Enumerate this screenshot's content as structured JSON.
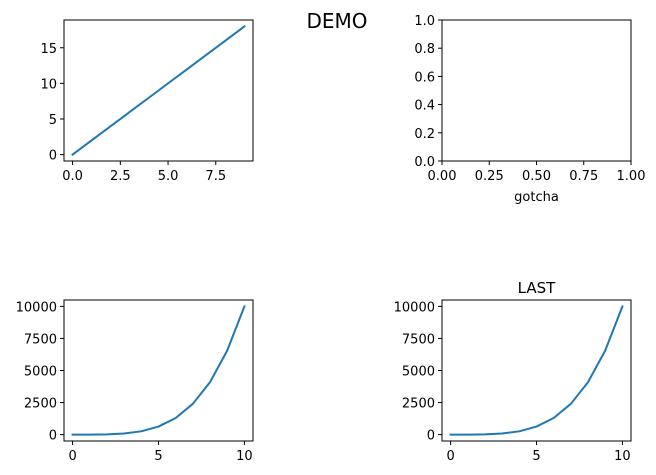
{
  "figure": {
    "suptitle": "DEMO"
  },
  "chart_data": [
    {
      "type": "line",
      "title": "",
      "xlabel": "",
      "ylabel": "",
      "xlim": [
        -0.45,
        9.45
      ],
      "ylim": [
        -0.9,
        18.9
      ],
      "x_ticks": [
        0,
        2.5,
        5,
        7.5
      ],
      "x_tick_labels": [
        "0.0",
        "2.5",
        "5.0",
        "7.5"
      ],
      "y_ticks": [
        0,
        5,
        10,
        15
      ],
      "y_tick_labels": [
        "0",
        "5",
        "10",
        "15"
      ],
      "grid": false,
      "series": [
        {
          "x": [
            0,
            1,
            2,
            3,
            4,
            5,
            6,
            7,
            8,
            9
          ],
          "y": [
            0,
            2,
            4,
            6,
            8,
            10,
            12,
            14,
            16,
            18
          ],
          "color": "#1f77b4"
        }
      ]
    },
    {
      "type": "line",
      "title": "",
      "xlabel": "gotcha",
      "ylabel": "",
      "xlim": [
        0,
        1
      ],
      "ylim": [
        0,
        1
      ],
      "x_ticks": [
        0,
        0.25,
        0.5,
        0.75,
        1
      ],
      "x_tick_labels": [
        "0.00",
        "0.25",
        "0.50",
        "0.75",
        "1.00"
      ],
      "y_ticks": [
        0,
        0.2,
        0.4,
        0.6,
        0.8,
        1
      ],
      "y_tick_labels": [
        "0.0",
        "0.2",
        "0.4",
        "0.6",
        "0.8",
        "1.0"
      ],
      "grid": false,
      "series": []
    },
    {
      "type": "line",
      "title": "",
      "xlabel": "",
      "ylabel": "",
      "xlim": [
        -0.5,
        10.5
      ],
      "ylim": [
        -500,
        10500
      ],
      "x_ticks": [
        0,
        5,
        10
      ],
      "x_tick_labels": [
        "0",
        "5",
        "10"
      ],
      "y_ticks": [
        0,
        2500,
        5000,
        7500,
        10000
      ],
      "y_tick_labels": [
        "0",
        "2500",
        "5000",
        "7500",
        "10000"
      ],
      "grid": false,
      "series": [
        {
          "x": [
            0,
            1,
            2,
            3,
            4,
            5,
            6,
            7,
            8,
            9,
            10
          ],
          "y": [
            0,
            1,
            16,
            81,
            256,
            625,
            1296,
            2401,
            4096,
            6561,
            10000
          ],
          "color": "#1f77b4"
        }
      ]
    },
    {
      "type": "line",
      "title": "LAST",
      "xlabel": "",
      "ylabel": "",
      "xlim": [
        -0.5,
        10.5
      ],
      "ylim": [
        -500,
        10500
      ],
      "x_ticks": [
        0,
        5,
        10
      ],
      "x_tick_labels": [
        "0",
        "5",
        "10"
      ],
      "y_ticks": [
        0,
        2500,
        5000,
        7500,
        10000
      ],
      "y_tick_labels": [
        "0",
        "2500",
        "5000",
        "7500",
        "10000"
      ],
      "grid": false,
      "series": [
        {
          "x": [
            0,
            1,
            2,
            3,
            4,
            5,
            6,
            7,
            8,
            9,
            10
          ],
          "y": [
            0,
            1,
            16,
            81,
            256,
            625,
            1296,
            2401,
            4096,
            6561,
            10000
          ],
          "color": "#1f77b4"
        }
      ]
    }
  ]
}
